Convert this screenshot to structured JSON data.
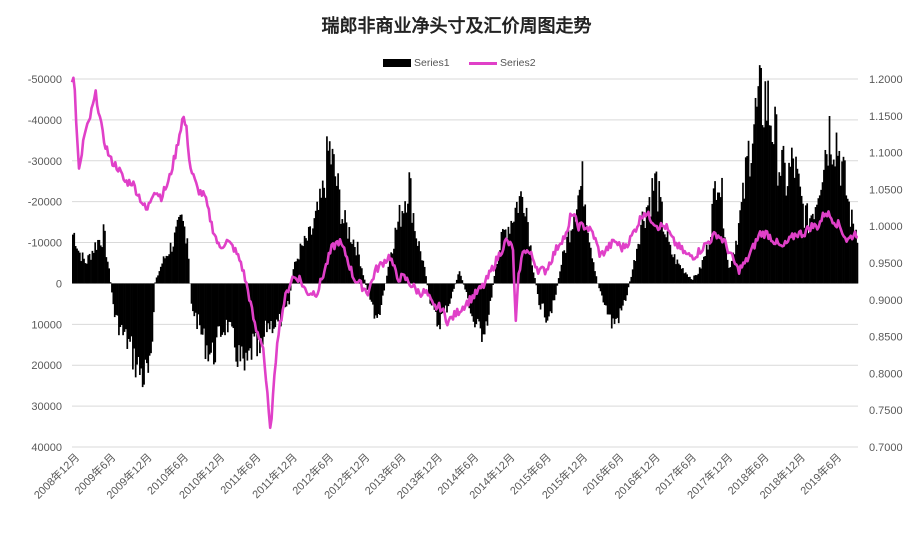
{
  "chart_data": {
    "type": "bar",
    "title": "瑞郎非商业净头寸及汇价周图走势",
    "series": [
      {
        "name": "Series1",
        "type": "bar",
        "axis": "left",
        "color": "#000000"
      },
      {
        "name": "Series2",
        "type": "line",
        "axis": "right",
        "color": "#e040c8"
      }
    ],
    "x_tick_labels": [
      "2008年12月",
      "2009年6月",
      "2009年12月",
      "2010年6月",
      "2010年12月",
      "2011年6月",
      "2011年12月",
      "2012年6月",
      "2012年12月",
      "2013年6月",
      "2013年12月",
      "2014年6月",
      "2014年12月",
      "2015年6月",
      "2015年12月",
      "2016年6月",
      "2016年12月",
      "2017年6月",
      "2017年12月",
      "2018年6月",
      "2018年12月",
      "2019年6月"
    ],
    "left_axis": {
      "ylim": [
        40000,
        -50000
      ],
      "inverted": true,
      "ticks": [
        -50000,
        -40000,
        -30000,
        -20000,
        -10000,
        0,
        10000,
        20000,
        30000,
        40000
      ]
    },
    "right_axis": {
      "ylim": [
        0.7,
        1.2
      ],
      "ticks": [
        "0.7000",
        "0.7500",
        "0.8000",
        "0.8500",
        "0.9000",
        "0.9500",
        "1.0000",
        "1.0500",
        "1.1000",
        "1.1500",
        "1.2000"
      ]
    },
    "series1_keypoints": [
      [
        2008.95,
        -12000
      ],
      [
        2009.0,
        -8000
      ],
      [
        2009.1,
        -5000
      ],
      [
        2009.25,
        -10000
      ],
      [
        2009.35,
        -12000
      ],
      [
        2009.42,
        -3000
      ],
      [
        2009.5,
        8000
      ],
      [
        2009.6,
        12000
      ],
      [
        2009.7,
        15000
      ],
      [
        2009.8,
        20000
      ],
      [
        2009.9,
        23000
      ],
      [
        2010.0,
        22000
      ],
      [
        2010.05,
        0
      ],
      [
        2010.15,
        -5000
      ],
      [
        2010.3,
        -10000
      ],
      [
        2010.42,
        -15000
      ],
      [
        2010.5,
        -12000
      ],
      [
        2010.55,
        5000
      ],
      [
        2010.65,
        10000
      ],
      [
        2010.75,
        15000
      ],
      [
        2010.85,
        18000
      ],
      [
        2010.95,
        12000
      ],
      [
        2011.05,
        10000
      ],
      [
        2011.2,
        18000
      ],
      [
        2011.3,
        22000
      ],
      [
        2011.4,
        15000
      ],
      [
        2011.5,
        18000
      ],
      [
        2011.6,
        10000
      ],
      [
        2011.75,
        10000
      ],
      [
        2011.9,
        5000
      ],
      [
        2011.95,
        -3000
      ],
      [
        2012.05,
        -8000
      ],
      [
        2012.2,
        -12000
      ],
      [
        2012.35,
        -20000
      ],
      [
        2012.45,
        -33000
      ],
      [
        2012.55,
        -25000
      ],
      [
        2012.65,
        -15000
      ],
      [
        2012.75,
        -12000
      ],
      [
        2012.85,
        -8000
      ],
      [
        2012.95,
        0
      ],
      [
        2013.05,
        5000
      ],
      [
        2013.1,
        10000
      ],
      [
        2013.2,
        3000
      ],
      [
        2013.3,
        -8000
      ],
      [
        2013.45,
        -18000
      ],
      [
        2013.55,
        -25000
      ],
      [
        2013.65,
        -12000
      ],
      [
        2013.75,
        -5000
      ],
      [
        2013.85,
        5000
      ],
      [
        2013.95,
        10000
      ],
      [
        2014.1,
        5000
      ],
      [
        2014.25,
        -3000
      ],
      [
        2014.35,
        3000
      ],
      [
        2014.45,
        10000
      ],
      [
        2014.55,
        12000
      ],
      [
        2014.65,
        8000
      ],
      [
        2014.75,
        -5000
      ],
      [
        2014.85,
        -12000
      ],
      [
        2014.95,
        -15000
      ],
      [
        2015.05,
        -20000
      ],
      [
        2015.15,
        -22000
      ],
      [
        2015.25,
        -5000
      ],
      [
        2015.35,
        5000
      ],
      [
        2015.45,
        8000
      ],
      [
        2015.55,
        5000
      ],
      [
        2015.65,
        -5000
      ],
      [
        2015.75,
        -12000
      ],
      [
        2015.85,
        -20000
      ],
      [
        2015.95,
        -25000
      ],
      [
        2016.05,
        -10000
      ],
      [
        2016.15,
        0
      ],
      [
        2016.25,
        5000
      ],
      [
        2016.35,
        10000
      ],
      [
        2016.45,
        8000
      ],
      [
        2016.55,
        3000
      ],
      [
        2016.65,
        -5000
      ],
      [
        2016.75,
        -15000
      ],
      [
        2016.85,
        -20000
      ],
      [
        2016.95,
        -25000
      ],
      [
        2017.05,
        -15000
      ],
      [
        2017.15,
        -8000
      ],
      [
        2017.25,
        -5000
      ],
      [
        2017.35,
        -3000
      ],
      [
        2017.45,
        -1000
      ],
      [
        2017.55,
        -3000
      ],
      [
        2017.65,
        -8000
      ],
      [
        2017.75,
        -20000
      ],
      [
        2017.8,
        -30000
      ],
      [
        2017.9,
        -15000
      ],
      [
        2017.95,
        -3000
      ],
      [
        2018.05,
        -10000
      ],
      [
        2018.15,
        -20000
      ],
      [
        2018.25,
        -35000
      ],
      [
        2018.35,
        -42000
      ],
      [
        2018.45,
        -46000
      ],
      [
        2018.55,
        -40000
      ],
      [
        2018.65,
        -30000
      ],
      [
        2018.75,
        -25000
      ],
      [
        2018.85,
        -30000
      ],
      [
        2018.95,
        -20000
      ],
      [
        2019.05,
        -15000
      ],
      [
        2019.15,
        -20000
      ],
      [
        2019.25,
        -30000
      ],
      [
        2019.35,
        -38000
      ],
      [
        2019.45,
        -35000
      ],
      [
        2019.55,
        -25000
      ],
      [
        2019.65,
        -15000
      ],
      [
        2019.75,
        -12000
      ]
    ],
    "series2_keypoints": [
      [
        2008.95,
        1.2
      ],
      [
        2009.0,
        1.1
      ],
      [
        2009.02,
        1.07
      ],
      [
        2009.08,
        1.12
      ],
      [
        2009.15,
        1.14
      ],
      [
        2009.2,
        1.16
      ],
      [
        2009.25,
        1.18
      ],
      [
        2009.3,
        1.15
      ],
      [
        2009.35,
        1.12
      ],
      [
        2009.45,
        1.09
      ],
      [
        2009.55,
        1.08
      ],
      [
        2009.65,
        1.06
      ],
      [
        2009.75,
        1.06
      ],
      [
        2009.85,
        1.04
      ],
      [
        2009.95,
        1.02
      ],
      [
        2010.05,
        1.05
      ],
      [
        2010.15,
        1.04
      ],
      [
        2010.25,
        1.06
      ],
      [
        2010.35,
        1.1
      ],
      [
        2010.45,
        1.15
      ],
      [
        2010.5,
        1.13
      ],
      [
        2010.55,
        1.08
      ],
      [
        2010.65,
        1.05
      ],
      [
        2010.75,
        1.04
      ],
      [
        2010.85,
        1.0
      ],
      [
        2010.95,
        0.97
      ],
      [
        2011.05,
        0.98
      ],
      [
        2011.15,
        0.97
      ],
      [
        2011.25,
        0.95
      ],
      [
        2011.35,
        0.91
      ],
      [
        2011.45,
        0.86
      ],
      [
        2011.55,
        0.84
      ],
      [
        2011.62,
        0.76
      ],
      [
        2011.65,
        0.72
      ],
      [
        2011.7,
        0.78
      ],
      [
        2011.75,
        0.85
      ],
      [
        2011.85,
        0.9
      ],
      [
        2011.95,
        0.93
      ],
      [
        2012.05,
        0.93
      ],
      [
        2012.15,
        0.91
      ],
      [
        2012.3,
        0.91
      ],
      [
        2012.4,
        0.94
      ],
      [
        2012.5,
        0.97
      ],
      [
        2012.6,
        0.98
      ],
      [
        2012.7,
        0.96
      ],
      [
        2012.8,
        0.93
      ],
      [
        2012.9,
        0.92
      ],
      [
        2013.0,
        0.91
      ],
      [
        2013.1,
        0.94
      ],
      [
        2013.2,
        0.95
      ],
      [
        2013.3,
        0.96
      ],
      [
        2013.4,
        0.93
      ],
      [
        2013.5,
        0.93
      ],
      [
        2013.6,
        0.92
      ],
      [
        2013.7,
        0.91
      ],
      [
        2013.8,
        0.91
      ],
      [
        2013.9,
        0.89
      ],
      [
        2014.0,
        0.89
      ],
      [
        2014.1,
        0.87
      ],
      [
        2014.2,
        0.88
      ],
      [
        2014.3,
        0.89
      ],
      [
        2014.4,
        0.9
      ],
      [
        2014.5,
        0.91
      ],
      [
        2014.6,
        0.92
      ],
      [
        2014.7,
        0.94
      ],
      [
        2014.8,
        0.96
      ],
      [
        2014.9,
        0.98
      ],
      [
        2015.0,
        0.97
      ],
      [
        2015.03,
        0.86
      ],
      [
        2015.08,
        0.94
      ],
      [
        2015.15,
        0.97
      ],
      [
        2015.25,
        0.96
      ],
      [
        2015.35,
        0.94
      ],
      [
        2015.45,
        0.94
      ],
      [
        2015.55,
        0.96
      ],
      [
        2015.65,
        0.98
      ],
      [
        2015.75,
        0.99
      ],
      [
        2015.8,
        1.02
      ],
      [
        2015.9,
        1.0
      ],
      [
        2016.0,
        1.0
      ],
      [
        2016.1,
        0.99
      ],
      [
        2016.2,
        0.96
      ],
      [
        2016.3,
        0.97
      ],
      [
        2016.4,
        0.98
      ],
      [
        2016.5,
        0.97
      ],
      [
        2016.6,
        0.98
      ],
      [
        2016.7,
        1.0
      ],
      [
        2016.8,
        1.02
      ],
      [
        2016.9,
        1.01
      ],
      [
        2017.0,
        1.0
      ],
      [
        2017.1,
        1.0
      ],
      [
        2017.2,
        0.98
      ],
      [
        2017.3,
        0.97
      ],
      [
        2017.4,
        0.96
      ],
      [
        2017.5,
        0.96
      ],
      [
        2017.6,
        0.97
      ],
      [
        2017.7,
        0.98
      ],
      [
        2017.8,
        0.99
      ],
      [
        2017.9,
        0.98
      ],
      [
        2018.0,
        0.96
      ],
      [
        2018.1,
        0.94
      ],
      [
        2018.2,
        0.95
      ],
      [
        2018.3,
        0.97
      ],
      [
        2018.4,
        0.99
      ],
      [
        2018.5,
        0.99
      ],
      [
        2018.6,
        0.98
      ],
      [
        2018.7,
        0.97
      ],
      [
        2018.8,
        0.98
      ],
      [
        2018.9,
        0.99
      ],
      [
        2019.0,
        0.99
      ],
      [
        2019.1,
        1.0
      ],
      [
        2019.2,
        1.0
      ],
      [
        2019.3,
        1.02
      ],
      [
        2019.4,
        1.01
      ],
      [
        2019.5,
        1.0
      ],
      [
        2019.6,
        0.98
      ],
      [
        2019.7,
        0.99
      ],
      [
        2019.75,
        0.99
      ]
    ],
    "legend_position": "top-center",
    "grid": true
  }
}
